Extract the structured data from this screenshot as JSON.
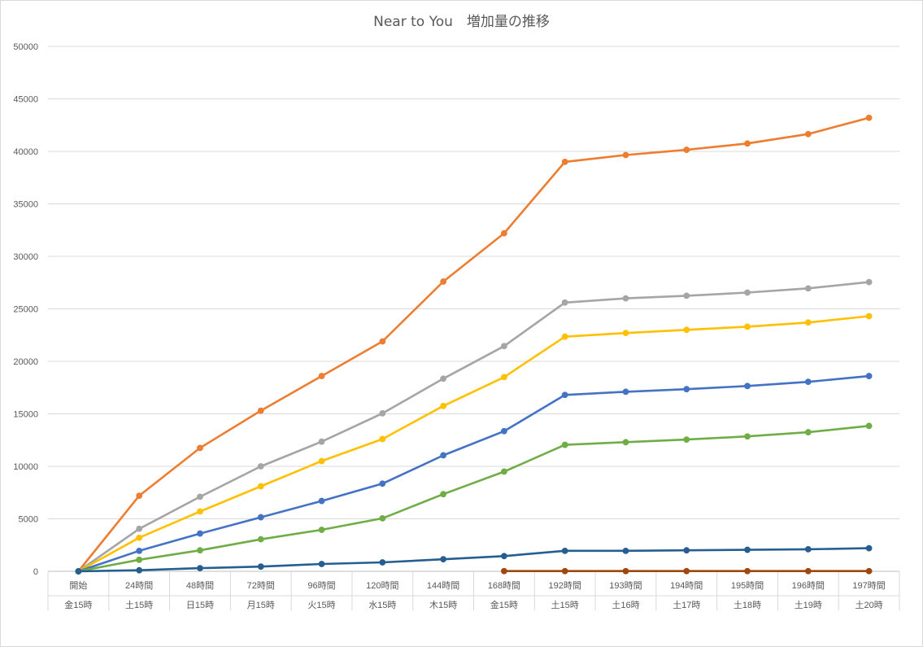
{
  "chart_data": {
    "type": "line",
    "title": "Near to You　増加量の推移",
    "xlabel": "",
    "ylabel": "",
    "ylim": [
      0,
      50000
    ],
    "yticks": [
      0,
      5000,
      10000,
      15000,
      20000,
      25000,
      30000,
      35000,
      40000,
      45000,
      50000
    ],
    "grid": true,
    "legend": "none",
    "categories": [
      {
        "line1": "開始",
        "line2": "金15時"
      },
      {
        "line1": "24時間",
        "line2": "土15時"
      },
      {
        "line1": "48時間",
        "line2": "日15時"
      },
      {
        "line1": "72時間",
        "line2": "月15時"
      },
      {
        "line1": "96時間",
        "line2": "火15時"
      },
      {
        "line1": "120時間",
        "line2": "水15時"
      },
      {
        "line1": "144時間",
        "line2": "木15時"
      },
      {
        "line1": "168時間",
        "line2": "金15時"
      },
      {
        "line1": "192時間",
        "line2": "土15時"
      },
      {
        "line1": "193時間",
        "line2": "土16時"
      },
      {
        "line1": "194時間",
        "line2": "土17時"
      },
      {
        "line1": "195時間",
        "line2": "土18時"
      },
      {
        "line1": "196時間",
        "line2": "土19時"
      },
      {
        "line1": "197時間",
        "line2": "土20時"
      }
    ],
    "series": [
      {
        "color": "#ED7D31",
        "values": [
          0,
          7200,
          11750,
          15300,
          18600,
          21900,
          27600,
          32200,
          39000,
          39650,
          40150,
          40750,
          41650,
          43200
        ]
      },
      {
        "color": "#A5A5A5",
        "values": [
          0,
          4050,
          7100,
          10000,
          12350,
          15050,
          18350,
          21450,
          25600,
          26000,
          26250,
          26550,
          26950,
          27550
        ]
      },
      {
        "color": "#FFC000",
        "values": [
          0,
          3200,
          5700,
          8100,
          10500,
          12600,
          15750,
          18500,
          22350,
          22700,
          23000,
          23300,
          23700,
          24300
        ]
      },
      {
        "color": "#4472C4",
        "values": [
          0,
          1950,
          3600,
          5150,
          6700,
          8350,
          11050,
          13350,
          16800,
          17100,
          17350,
          17650,
          18050,
          18600
        ]
      },
      {
        "color": "#70AD47",
        "values": [
          0,
          1100,
          2000,
          3050,
          3950,
          5050,
          7350,
          9500,
          12050,
          12300,
          12550,
          12850,
          13250,
          13850
        ]
      },
      {
        "color": "#255E91",
        "values": [
          0,
          100,
          300,
          450,
          700,
          850,
          1150,
          1450,
          1950,
          1950,
          2000,
          2050,
          2100,
          2200
        ]
      },
      {
        "color": "#9E480E",
        "values": [
          null,
          null,
          null,
          null,
          null,
          null,
          null,
          20,
          20,
          20,
          20,
          20,
          20,
          20
        ]
      }
    ]
  }
}
